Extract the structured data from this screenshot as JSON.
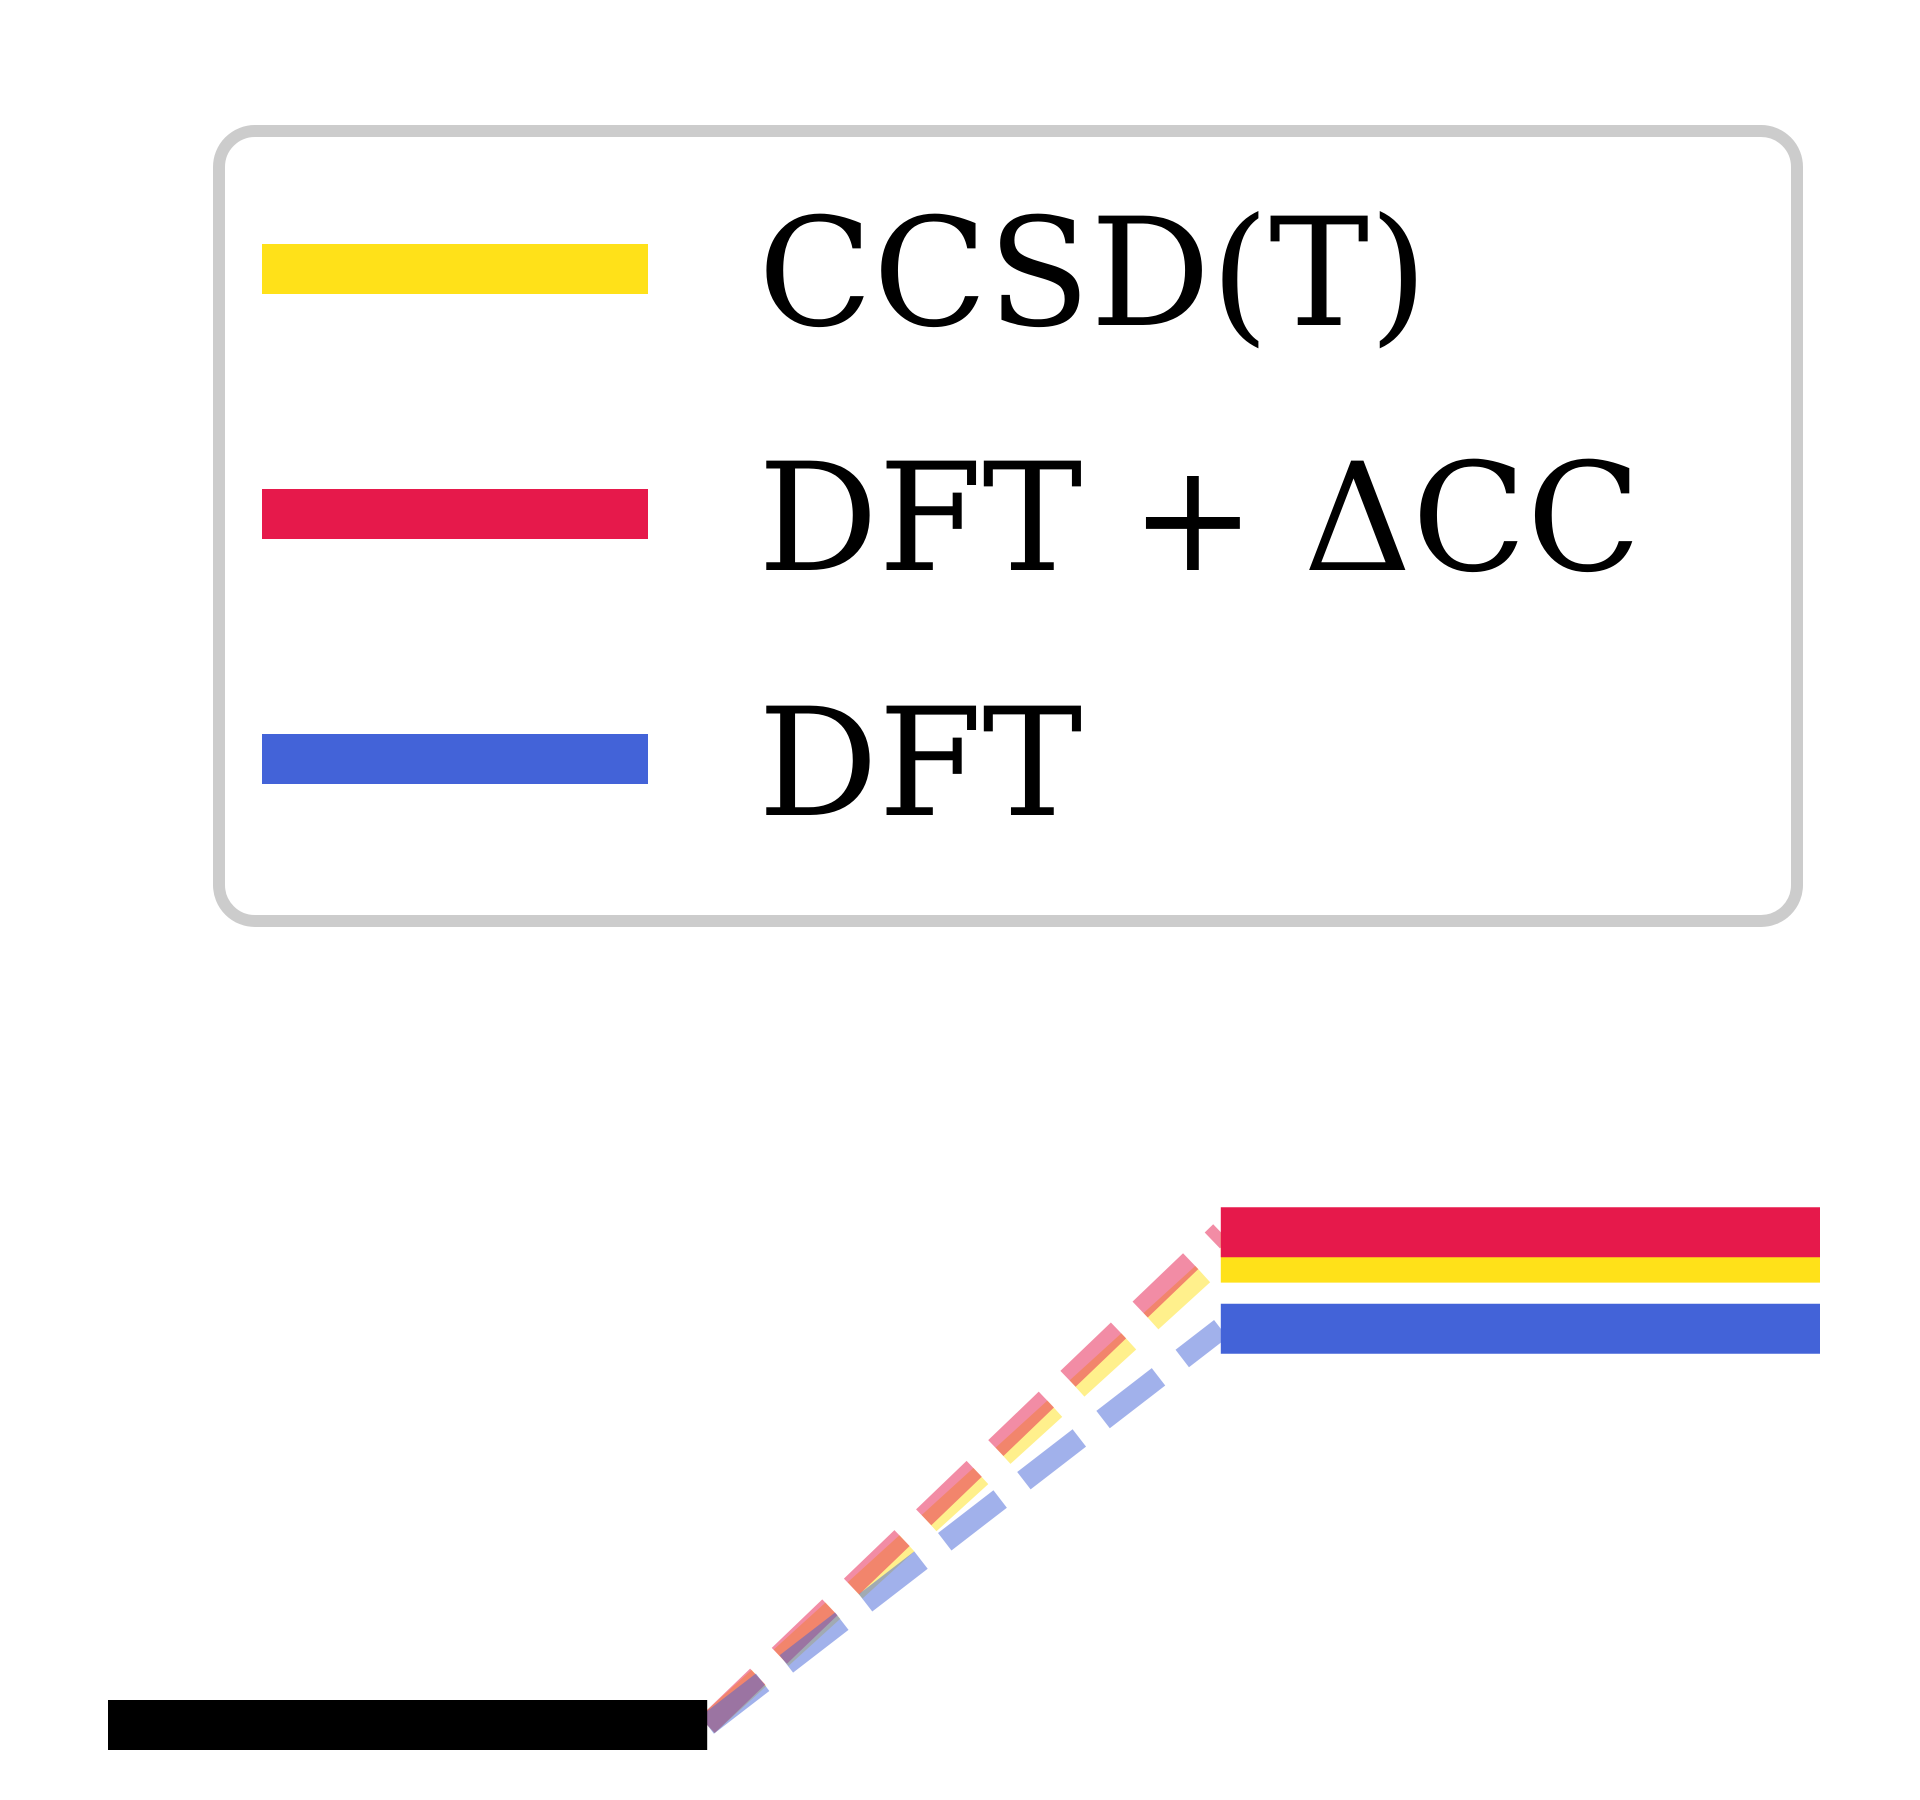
{
  "chart_data": {
    "type": "line",
    "title": "",
    "xlabel": "",
    "ylabel": "",
    "legend_position": "top",
    "grid": false,
    "axes_visible": false,
    "xlim": [
      0,
      1
    ],
    "ylim": [
      0,
      1
    ],
    "reference_level": {
      "color": "#000000",
      "x": [
        0.0,
        0.35
      ],
      "y": 0.0
    },
    "series": [
      {
        "name": "CCSD(T)",
        "color": "#FFE119",
        "start": [
          0.35,
          0.0
        ],
        "end": [
          0.65,
          0.92
        ],
        "level_x": [
          0.65,
          1.0
        ]
      },
      {
        "name": "DFT + ΔCC",
        "color": "#E6194B",
        "start": [
          0.35,
          0.0
        ],
        "end": [
          0.65,
          0.97
        ],
        "level_x": [
          0.65,
          1.0
        ]
      },
      {
        "name": "DFT",
        "color": "#4363D8",
        "start": [
          0.35,
          0.0
        ],
        "end": [
          0.65,
          0.78
        ],
        "level_x": [
          0.65,
          1.0
        ]
      }
    ]
  }
}
